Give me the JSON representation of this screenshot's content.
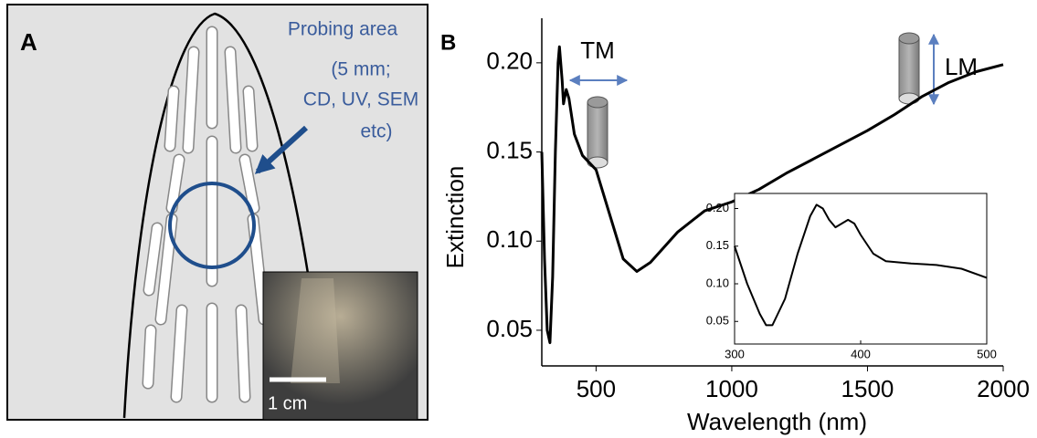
{
  "panel_a": {
    "label": "A",
    "annotation": [
      "Probing area",
      "(5 mm;",
      "CD, UV, SEM",
      "etc)"
    ],
    "scale_bar": "1 cm"
  },
  "panel_b": {
    "label": "B"
  },
  "chart_data": [
    {
      "type": "line",
      "xlabel": "Wavelength (nm)",
      "ylabel": "Extinction",
      "annotations": [
        "TM",
        "LM"
      ],
      "color": "#000000",
      "x": [
        300,
        310,
        320,
        330,
        340,
        350,
        360,
        365,
        375,
        380,
        390,
        400,
        420,
        450,
        500,
        550,
        600,
        650,
        700,
        800,
        900,
        1000,
        1100,
        1200,
        1300,
        1400,
        1500,
        1600,
        1700,
        1800,
        1900,
        2000
      ],
      "values": [
        0.15,
        0.09,
        0.05,
        0.043,
        0.08,
        0.15,
        0.2,
        0.209,
        0.19,
        0.177,
        0.185,
        0.18,
        0.16,
        0.148,
        0.14,
        0.115,
        0.09,
        0.083,
        0.088,
        0.105,
        0.117,
        0.122,
        0.129,
        0.138,
        0.146,
        0.154,
        0.162,
        0.171,
        0.181,
        0.189,
        0.195,
        0.199
      ],
      "xlim": [
        300,
        2000
      ],
      "ylim": [
        0.03,
        0.225
      ],
      "xticks": [
        500,
        1000,
        1500,
        2000
      ],
      "yticks": [
        0.05,
        {
          "value": 0.1,
          "label": "0.10"
        },
        0.15,
        {
          "value": 0.2,
          "label": "0.20"
        }
      ]
    },
    {
      "type": "line",
      "color": "#000000",
      "x": [
        300,
        310,
        320,
        325,
        330,
        340,
        350,
        360,
        365,
        370,
        375,
        380,
        385,
        390,
        395,
        400,
        410,
        420,
        440,
        460,
        480,
        500
      ],
      "values": [
        0.15,
        0.1,
        0.06,
        0.045,
        0.045,
        0.08,
        0.14,
        0.19,
        0.205,
        0.2,
        0.185,
        0.175,
        0.18,
        0.185,
        0.18,
        0.165,
        0.14,
        0.13,
        0.127,
        0.125,
        0.12,
        0.108
      ],
      "xlim": [
        300,
        500
      ],
      "ylim": [
        0.02,
        0.22
      ],
      "xticks": [
        300,
        400,
        500
      ],
      "yticks": [
        0.05,
        {
          "value": 0.1,
          "label": "0.10"
        },
        0.15,
        {
          "value": 0.2,
          "label": "0.20"
        }
      ]
    }
  ]
}
